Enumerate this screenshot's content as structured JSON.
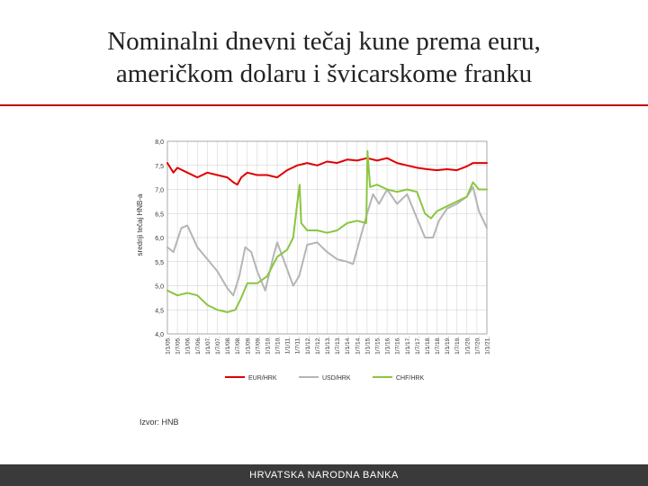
{
  "slide": {
    "title_line1": "Nominalni dnevni tečaj kune prema euru,",
    "title_line2": "američkom dolaru i švicarskome franku",
    "source": "Izvor: HNB",
    "footer": "HRVATSKA NARODNA BANKA"
  },
  "colors": {
    "rule": "#c00000",
    "footer_bg": "#3a3a3a",
    "eur": "#e00000",
    "usd": "#b5b5b5",
    "chf": "#8ac640",
    "grid": "#cccccc"
  },
  "chart_data": {
    "type": "line",
    "title": "",
    "xlabel": "",
    "ylabel": "srednji tečaj HNB-a",
    "ylim": [
      4.0,
      8.0
    ],
    "y_ticks": [
      8.0,
      7.5,
      7.0,
      6.5,
      6.0,
      5.5,
      5.0,
      4.5,
      4.0
    ],
    "y_tick_labels": [
      "8,0",
      "7,5",
      "7,0",
      "6,5",
      "6,0",
      "5,5",
      "5,0",
      "4,5",
      "4,0"
    ],
    "x_range": [
      2005,
      2021
    ],
    "x_ticks": [
      2005,
      2005.5,
      2006,
      2006.5,
      2007,
      2007.5,
      2008,
      2008.5,
      2009,
      2009.5,
      2010,
      2010.5,
      2011,
      2011.5,
      2012,
      2012.5,
      2013,
      2013.5,
      2014,
      2014.5,
      2015,
      2015.5,
      2016,
      2016.5,
      2017,
      2017.5,
      2018,
      2018.5,
      2019,
      2019.5,
      2020,
      2020.5,
      2021
    ],
    "x_tick_labels": [
      "1/1/05.",
      "1/7/05.",
      "1/1/06.",
      "1/7/06.",
      "1/1/07.",
      "1/7/07.",
      "1/1/08.",
      "1/7/08.",
      "1/1/09.",
      "1/7/09.",
      "1/1/10.",
      "1/7/10.",
      "1/1/11.",
      "1/7/11.",
      "1/1/12.",
      "1/7/12.",
      "1/1/13.",
      "1/7/13.",
      "1/1/14.",
      "1/7/14.",
      "1/1/15.",
      "1/7/15.",
      "1/1/16.",
      "1/7/16.",
      "1/1/17.",
      "1/7/17.",
      "1/1/18.",
      "1/7/18.",
      "1/1/19.",
      "1/7/19.",
      "1/1/20.",
      "1/7/20.",
      "1/1/21."
    ],
    "legend_position": "bottom",
    "grid": true,
    "series": [
      {
        "name": "EUR/HRK",
        "color": "#e00000",
        "x": [
          2005,
          2005.3,
          2005.5,
          2006,
          2006.5,
          2007,
          2007.5,
          2008,
          2008.3,
          2008.5,
          2008.7,
          2009,
          2009.5,
          2010,
          2010.5,
          2011,
          2011.5,
          2012,
          2012.5,
          2013,
          2013.5,
          2014,
          2014.5,
          2015,
          2015.5,
          2016,
          2016.5,
          2017,
          2017.5,
          2018,
          2018.5,
          2019,
          2019.5,
          2020,
          2020.3,
          2020.6,
          2021
        ],
        "values": [
          7.55,
          7.35,
          7.45,
          7.35,
          7.25,
          7.35,
          7.3,
          7.25,
          7.15,
          7.1,
          7.25,
          7.35,
          7.3,
          7.3,
          7.25,
          7.4,
          7.5,
          7.55,
          7.5,
          7.58,
          7.55,
          7.62,
          7.6,
          7.65,
          7.6,
          7.65,
          7.55,
          7.5,
          7.45,
          7.42,
          7.4,
          7.42,
          7.4,
          7.48,
          7.55,
          7.55,
          7.55
        ]
      },
      {
        "name": "USD/HRK",
        "color": "#b5b5b5",
        "x": [
          2005,
          2005.3,
          2005.7,
          2006,
          2006.5,
          2006.9,
          2007.5,
          2008,
          2008.3,
          2008.6,
          2008.9,
          2009.2,
          2009.5,
          2009.9,
          2010.3,
          2010.5,
          2010.9,
          2011.3,
          2011.6,
          2012,
          2012.5,
          2013,
          2013.5,
          2014,
          2014.3,
          2014.6,
          2015,
          2015.3,
          2015.6,
          2016,
          2016.5,
          2017,
          2017.4,
          2017.9,
          2018.3,
          2018.6,
          2019,
          2019.5,
          2020,
          2020.3,
          2020.6,
          2021
        ],
        "values": [
          5.8,
          5.7,
          6.2,
          6.25,
          5.8,
          5.6,
          5.3,
          4.95,
          4.8,
          5.2,
          5.8,
          5.7,
          5.3,
          4.9,
          5.6,
          5.9,
          5.45,
          5.0,
          5.2,
          5.85,
          5.9,
          5.7,
          5.55,
          5.5,
          5.45,
          5.9,
          6.5,
          6.9,
          6.7,
          7.0,
          6.7,
          6.9,
          6.5,
          6.0,
          6.0,
          6.35,
          6.6,
          6.7,
          6.85,
          7.05,
          6.55,
          6.2
        ]
      },
      {
        "name": "CHF/HRK",
        "color": "#8ac640",
        "x": [
          2005,
          2005.5,
          2006,
          2006.5,
          2007,
          2007.5,
          2008,
          2008.4,
          2008.7,
          2009,
          2009.5,
          2010,
          2010.5,
          2011,
          2011.3,
          2011.5,
          2011.62,
          2011.7,
          2012,
          2012.5,
          2013,
          2013.5,
          2014,
          2014.5,
          2014.96,
          2015.02,
          2015.15,
          2015.5,
          2016,
          2016.5,
          2017,
          2017.5,
          2017.9,
          2018.2,
          2018.5,
          2019,
          2019.5,
          2020,
          2020.3,
          2020.6,
          2021
        ],
        "values": [
          4.9,
          4.8,
          4.85,
          4.8,
          4.6,
          4.5,
          4.45,
          4.5,
          4.75,
          5.05,
          5.05,
          5.2,
          5.6,
          5.75,
          6.0,
          6.7,
          7.1,
          6.3,
          6.15,
          6.15,
          6.1,
          6.15,
          6.3,
          6.35,
          6.3,
          7.8,
          7.05,
          7.1,
          7.0,
          6.95,
          7.0,
          6.95,
          6.5,
          6.4,
          6.55,
          6.65,
          6.75,
          6.85,
          7.15,
          7.0,
          7.0
        ]
      }
    ]
  }
}
